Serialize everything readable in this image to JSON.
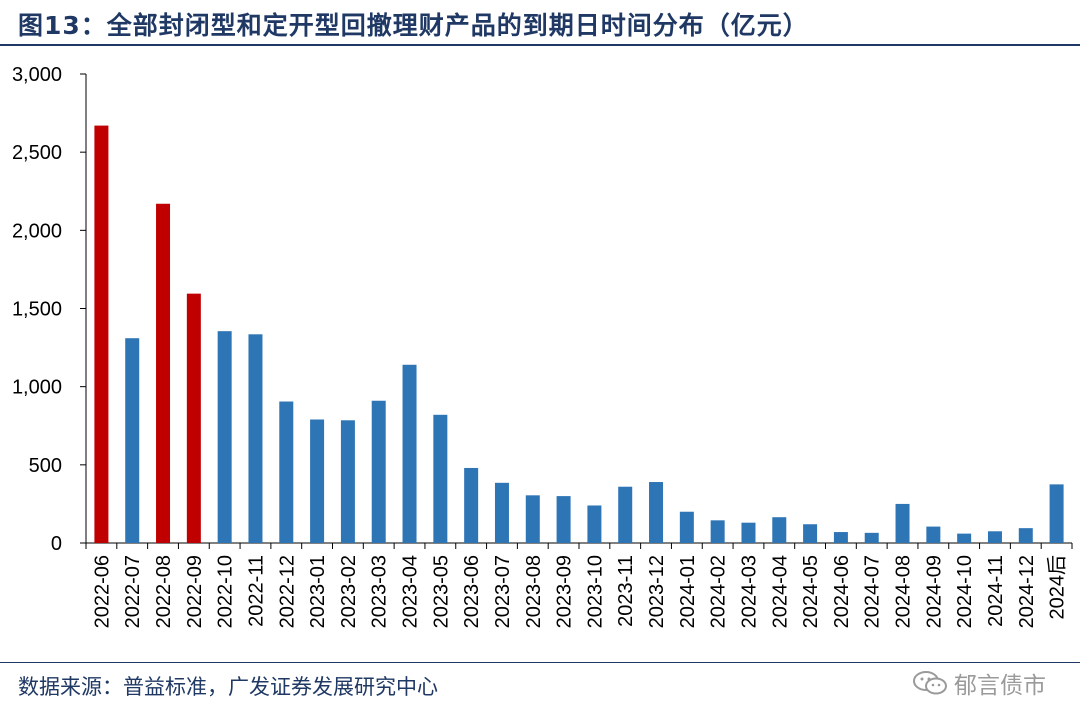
{
  "title": "图13：全部封闭型和定开型回撤理财产品的到期日时间分布（亿元）",
  "source": "数据来源：普益标准，广发证券发展研究中心",
  "watermark": "郁言债市",
  "colors": {
    "highlight": "#c00000",
    "normal": "#2e75b6",
    "title": "#1f3864"
  },
  "chart_data": {
    "type": "bar",
    "title": "图13：全部封闭型和定开型回撤理财产品的到期日时间分布（亿元）",
    "xlabel": "",
    "ylabel": "",
    "ylim": [
      0,
      3000
    ],
    "yticks": [
      0,
      500,
      1000,
      1500,
      2000,
      2500,
      3000
    ],
    "ytick_labels": [
      "0",
      "500",
      "1,000",
      "1,500",
      "2,000",
      "2,500",
      "3,000"
    ],
    "grid": false,
    "categories": [
      "2022-06",
      "2022-07",
      "2022-08",
      "2022-09",
      "2022-10",
      "2022-11",
      "2022-12",
      "2023-01",
      "2023-02",
      "2023-03",
      "2023-04",
      "2023-05",
      "2023-06",
      "2023-07",
      "2023-08",
      "2023-09",
      "2023-10",
      "2023-11",
      "2023-12",
      "2024-01",
      "2024-02",
      "2024-03",
      "2024-04",
      "2024-05",
      "2024-06",
      "2024-07",
      "2024-08",
      "2024-09",
      "2024-10",
      "2024-11",
      "2024-12",
      "2024后"
    ],
    "values": [
      2670,
      1310,
      2170,
      1595,
      1355,
      1335,
      905,
      790,
      785,
      910,
      1140,
      820,
      480,
      385,
      305,
      300,
      240,
      360,
      390,
      200,
      145,
      130,
      165,
      120,
      70,
      65,
      250,
      105,
      60,
      75,
      95,
      375
    ],
    "highlighted": [
      true,
      false,
      true,
      true,
      false,
      false,
      false,
      false,
      false,
      false,
      false,
      false,
      false,
      false,
      false,
      false,
      false,
      false,
      false,
      false,
      false,
      false,
      false,
      false,
      false,
      false,
      false,
      false,
      false,
      false,
      false,
      false
    ]
  }
}
